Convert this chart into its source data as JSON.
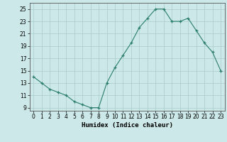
{
  "x": [
    0,
    1,
    2,
    3,
    4,
    5,
    6,
    7,
    8,
    9,
    10,
    11,
    12,
    13,
    14,
    15,
    16,
    17,
    18,
    19,
    20,
    21,
    22,
    23
  ],
  "y": [
    14.0,
    13.0,
    12.0,
    11.5,
    11.0,
    10.0,
    9.5,
    9.0,
    9.0,
    13.0,
    15.5,
    17.5,
    19.5,
    22.0,
    23.5,
    25.0,
    25.0,
    23.0,
    23.0,
    23.5,
    21.5,
    19.5,
    18.0,
    15.0
  ],
  "title": "",
  "xlabel": "Humidex (Indice chaleur)",
  "ylabel": "",
  "xlim": [
    -0.5,
    23.5
  ],
  "ylim": [
    8.5,
    26.0
  ],
  "yticks": [
    9,
    11,
    13,
    15,
    17,
    19,
    21,
    23,
    25
  ],
  "xtick_labels": [
    "0",
    "1",
    "2",
    "3",
    "4",
    "5",
    "6",
    "7",
    "8",
    "9",
    "10",
    "11",
    "12",
    "13",
    "14",
    "15",
    "16",
    "17",
    "18",
    "19",
    "20",
    "21",
    "22",
    "23"
  ],
  "line_color": "#2a7d6e",
  "marker_color": "#2a7d6e",
  "bg_color": "#cce8e8",
  "grid_color": "#aacccc",
  "axis_color": "#555555",
  "tick_fontsize": 5.5,
  "xlabel_fontsize": 6.5
}
